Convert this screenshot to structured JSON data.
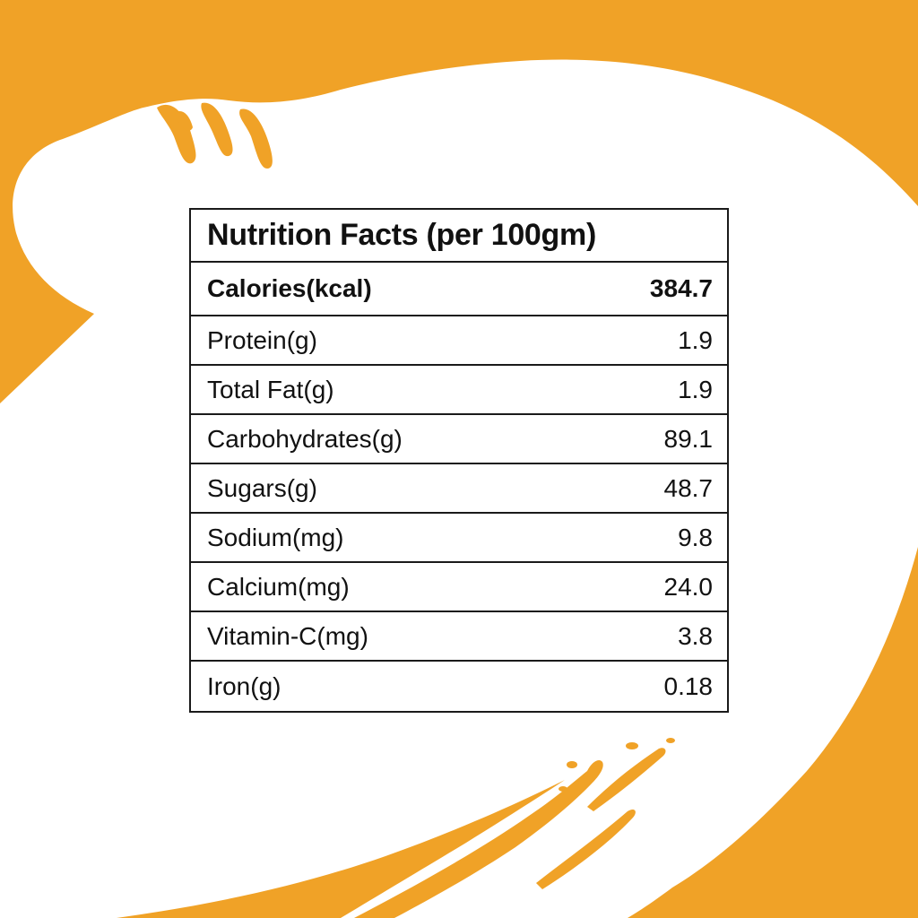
{
  "colors": {
    "background": "#F0A227",
    "splash": "#FFFFFF",
    "table_border": "#1a1a1a",
    "text": "#111111"
  },
  "table": {
    "title": "Nutrition Facts (per 100gm)",
    "calories": {
      "label": "Calories(kcal)",
      "value": "384.7"
    },
    "rows": [
      {
        "label": "Protein(g)",
        "value": "1.9"
      },
      {
        "label": "Total Fat(g)",
        "value": "1.9"
      },
      {
        "label": "Carbohydrates(g)",
        "value": "89.1"
      },
      {
        "label": "Sugars(g)",
        "value": "48.7"
      },
      {
        "label": "Sodium(mg)",
        "value": "9.8"
      },
      {
        "label": "Calcium(mg)",
        "value": "24.0"
      },
      {
        "label": "Vitamin-C(mg)",
        "value": "3.8"
      },
      {
        "label": "Iron(g)",
        "value": "0.18"
      }
    ]
  }
}
